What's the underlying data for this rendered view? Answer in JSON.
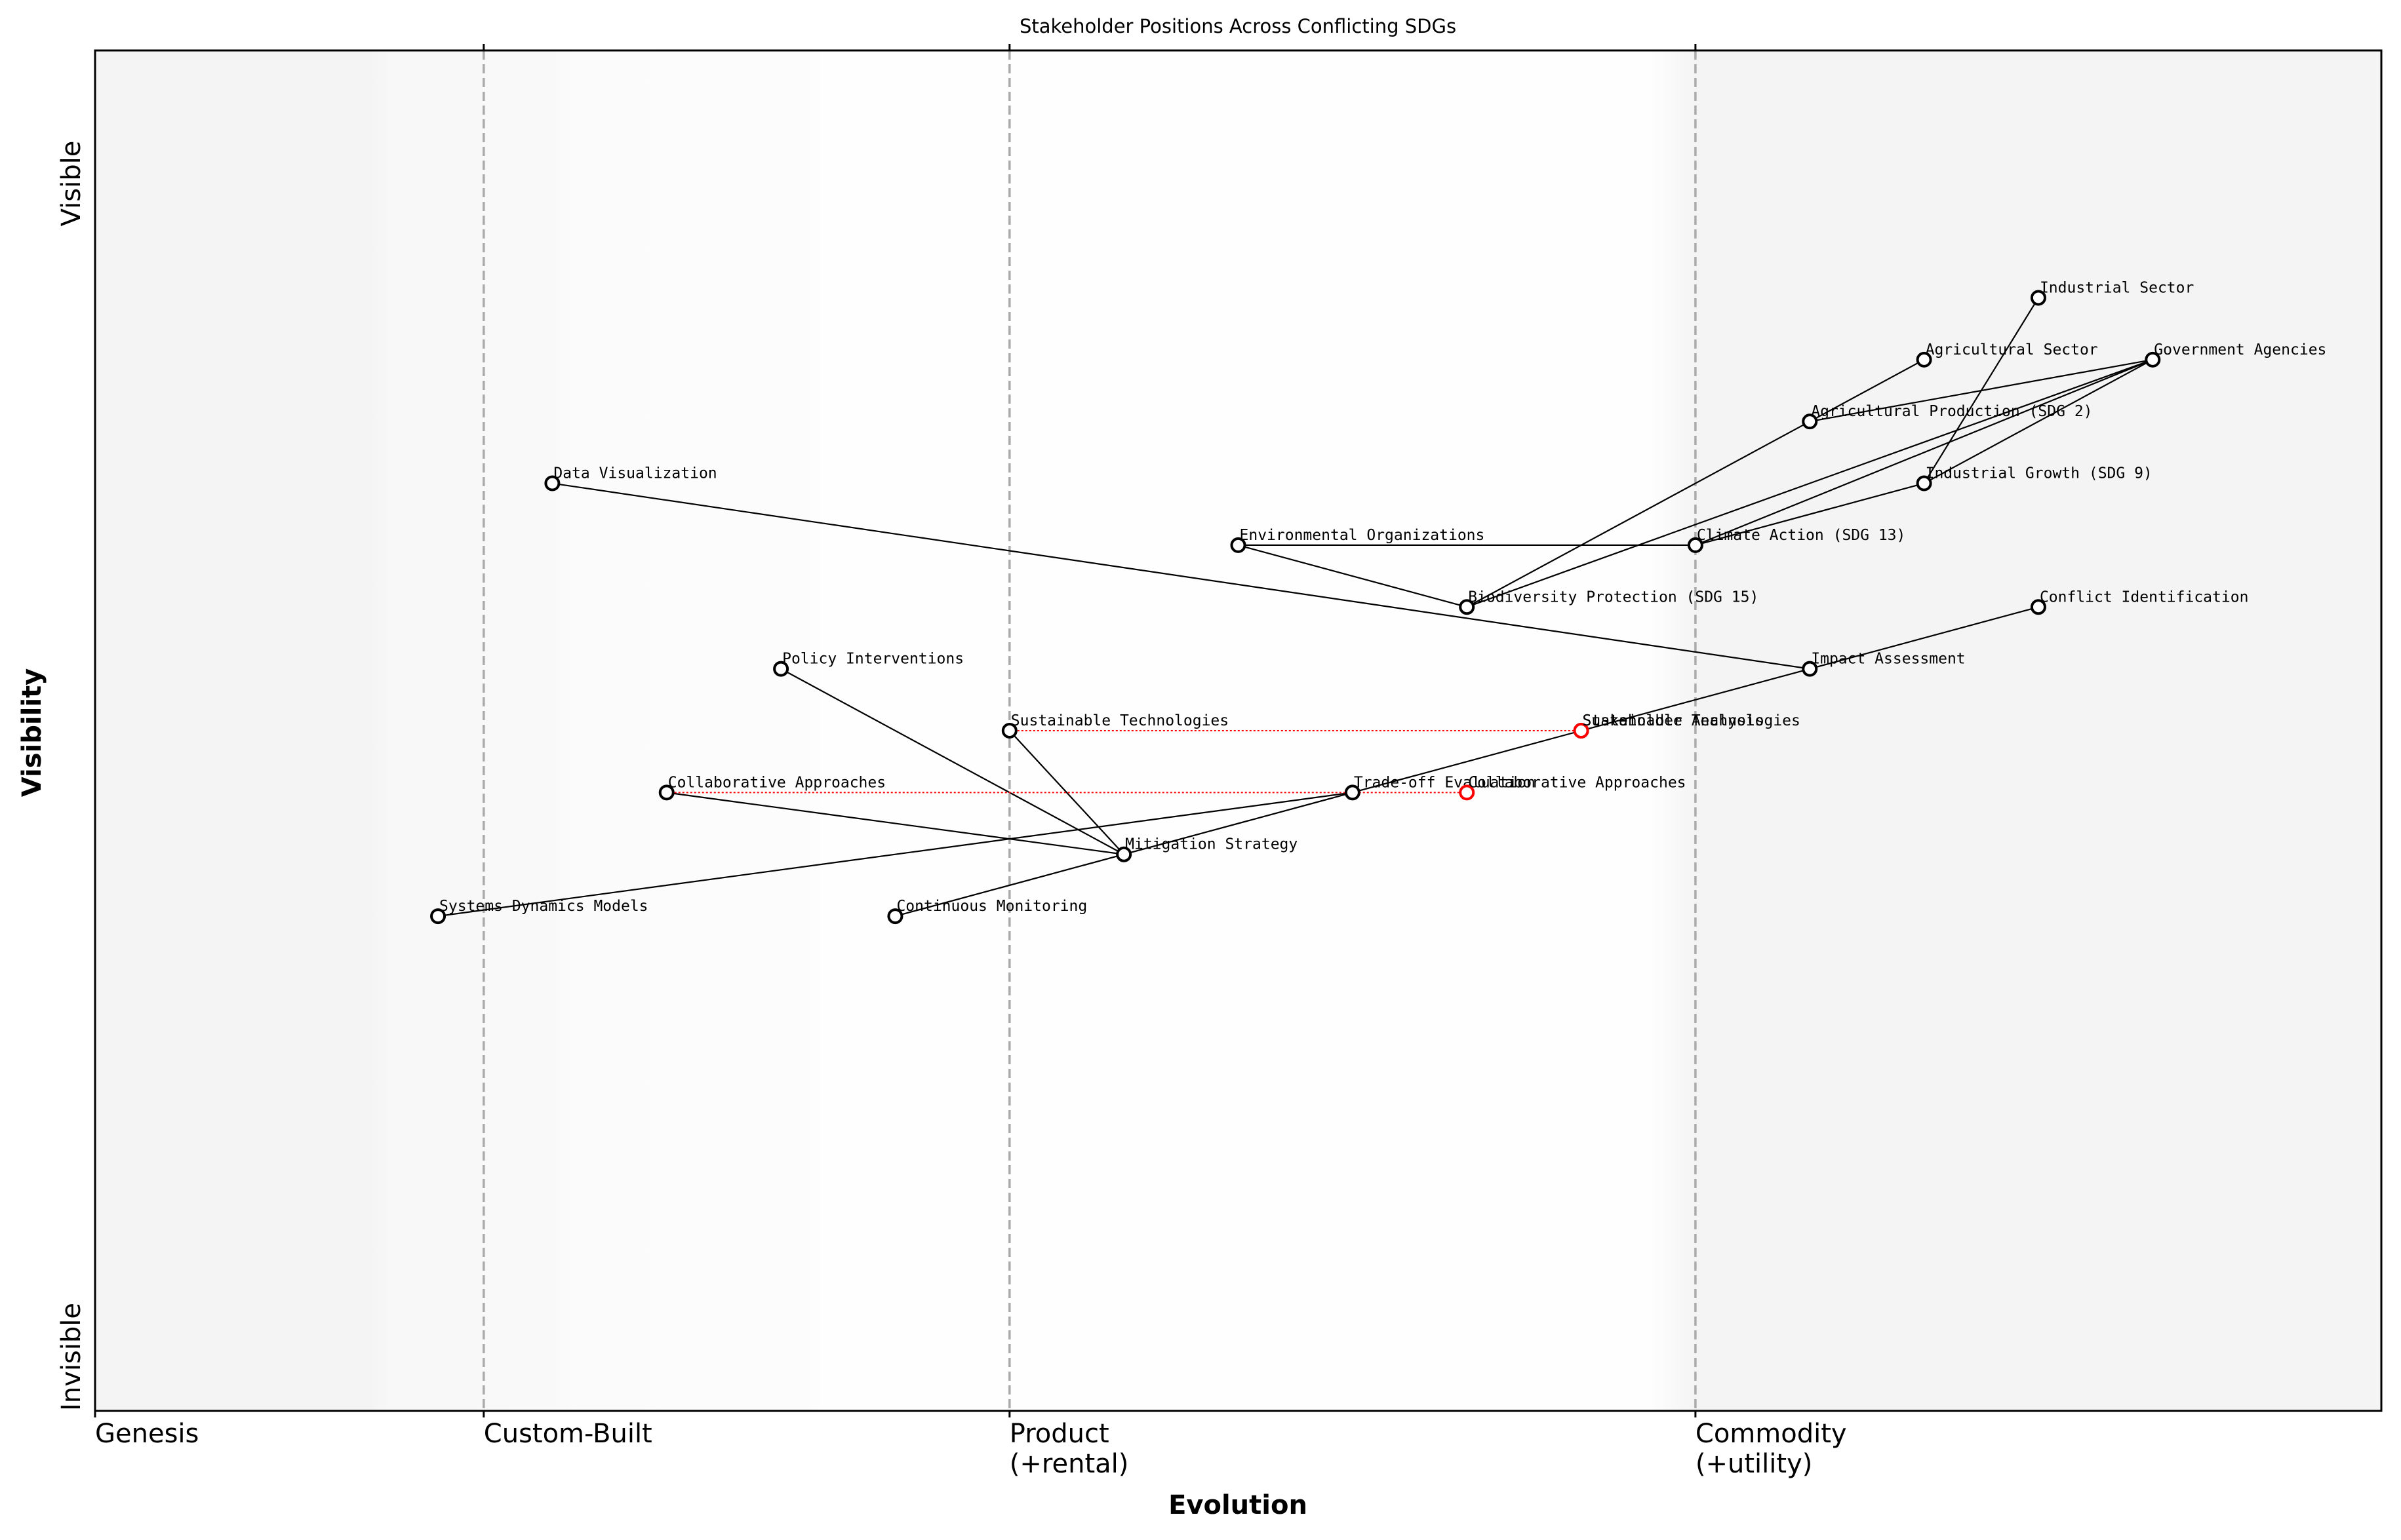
{
  "chart_data": {
    "type": "wardley",
    "title": "Stakeholder Positions Across Conflicting SDGs",
    "x_label": "Evolution",
    "y_label": "Visibility",
    "y_end_labels": {
      "high": "Visible",
      "low": "Invisible"
    },
    "xlim": [
      0,
      1
    ],
    "ylim": [
      -0.05,
      1.05
    ],
    "xticks": [
      {
        "value": 0,
        "label": "Genesis"
      },
      {
        "value": 0.17,
        "label": "Custom-Built"
      },
      {
        "value": 0.4,
        "label": "Product\n(+rental)"
      },
      {
        "value": 0.7,
        "label": "Commodity\n(+utility)"
      }
    ],
    "components": [
      {
        "name": "Industrial Sector",
        "x": 0.85,
        "y": 0.85
      },
      {
        "name": "Agricultural Sector",
        "x": 0.8,
        "y": 0.8
      },
      {
        "name": "Government Agencies",
        "x": 0.9,
        "y": 0.8
      },
      {
        "name": "Agricultural Production (SDG 2)",
        "x": 0.75,
        "y": 0.75
      },
      {
        "name": "Data Visualization",
        "x": 0.2,
        "y": 0.7
      },
      {
        "name": "Industrial Growth (SDG 9)",
        "x": 0.8,
        "y": 0.7
      },
      {
        "name": "Environmental Organizations",
        "x": 0.5,
        "y": 0.65
      },
      {
        "name": "Climate Action (SDG 13)",
        "x": 0.7,
        "y": 0.65
      },
      {
        "name": "Biodiversity Protection (SDG 15)",
        "x": 0.6,
        "y": 0.6
      },
      {
        "name": "Conflict Identification",
        "x": 0.85,
        "y": 0.6
      },
      {
        "name": "Policy Interventions",
        "x": 0.3,
        "y": 0.55
      },
      {
        "name": "Impact Assessment",
        "x": 0.75,
        "y": 0.55
      },
      {
        "name": "Sustainable Technologies",
        "x": 0.4,
        "y": 0.5
      },
      {
        "name": "Stakeholder Analysis",
        "x": 0.65,
        "y": 0.5
      },
      {
        "name": "Collaborative Approaches",
        "x": 0.25,
        "y": 0.45
      },
      {
        "name": "Trade-off Evaluation",
        "x": 0.55,
        "y": 0.45
      },
      {
        "name": "Mitigation Strategy",
        "x": 0.45,
        "y": 0.4
      },
      {
        "name": "Systems Dynamics Models",
        "x": 0.15,
        "y": 0.35
      },
      {
        "name": "Continuous Monitoring",
        "x": 0.35,
        "y": 0.35
      }
    ],
    "links": [
      {
        "from": "Industrial Sector",
        "to": "Industrial Growth (SDG 9)"
      },
      {
        "from": "Agricultural Sector",
        "to": "Agricultural Production (SDG 2)"
      },
      {
        "from": "Government Agencies",
        "to": "Agricultural Production (SDG 2)"
      },
      {
        "from": "Government Agencies",
        "to": "Climate Action (SDG 13)"
      },
      {
        "from": "Government Agencies",
        "to": "Industrial Growth (SDG 9)"
      },
      {
        "from": "Government Agencies",
        "to": "Biodiversity Protection (SDG 15)"
      },
      {
        "from": "Agricultural Production (SDG 2)",
        "to": "Biodiversity Protection (SDG 15)"
      },
      {
        "from": "Industrial Growth (SDG 9)",
        "to": "Climate Action (SDG 13)"
      },
      {
        "from": "Environmental Organizations",
        "to": "Climate Action (SDG 13)"
      },
      {
        "from": "Environmental Organizations",
        "to": "Biodiversity Protection (SDG 15)"
      },
      {
        "from": "Data Visualization",
        "to": "Impact Assessment"
      },
      {
        "from": "Conflict Identification",
        "to": "Impact Assessment"
      },
      {
        "from": "Impact Assessment",
        "to": "Stakeholder Analysis"
      },
      {
        "from": "Stakeholder Analysis",
        "to": "Trade-off Evaluation"
      },
      {
        "from": "Trade-off Evaluation",
        "to": "Systems Dynamics Models"
      },
      {
        "from": "Trade-off Evaluation",
        "to": "Mitigation Strategy"
      },
      {
        "from": "Policy Interventions",
        "to": "Mitigation Strategy"
      },
      {
        "from": "Sustainable Technologies",
        "to": "Mitigation Strategy"
      },
      {
        "from": "Collaborative Approaches",
        "to": "Mitigation Strategy"
      },
      {
        "from": "Continuous Monitoring",
        "to": "Mitigation Strategy"
      }
    ],
    "evolutions": [
      {
        "name": "Sustainable Technologies",
        "from": 0.4,
        "to": 0.65,
        "y": 0.5
      },
      {
        "name": "Collaborative Approaches",
        "from": 0.25,
        "to": 0.6,
        "y": 0.45
      }
    ],
    "evolution_color": "#ff0000",
    "node_color": "#000000"
  }
}
